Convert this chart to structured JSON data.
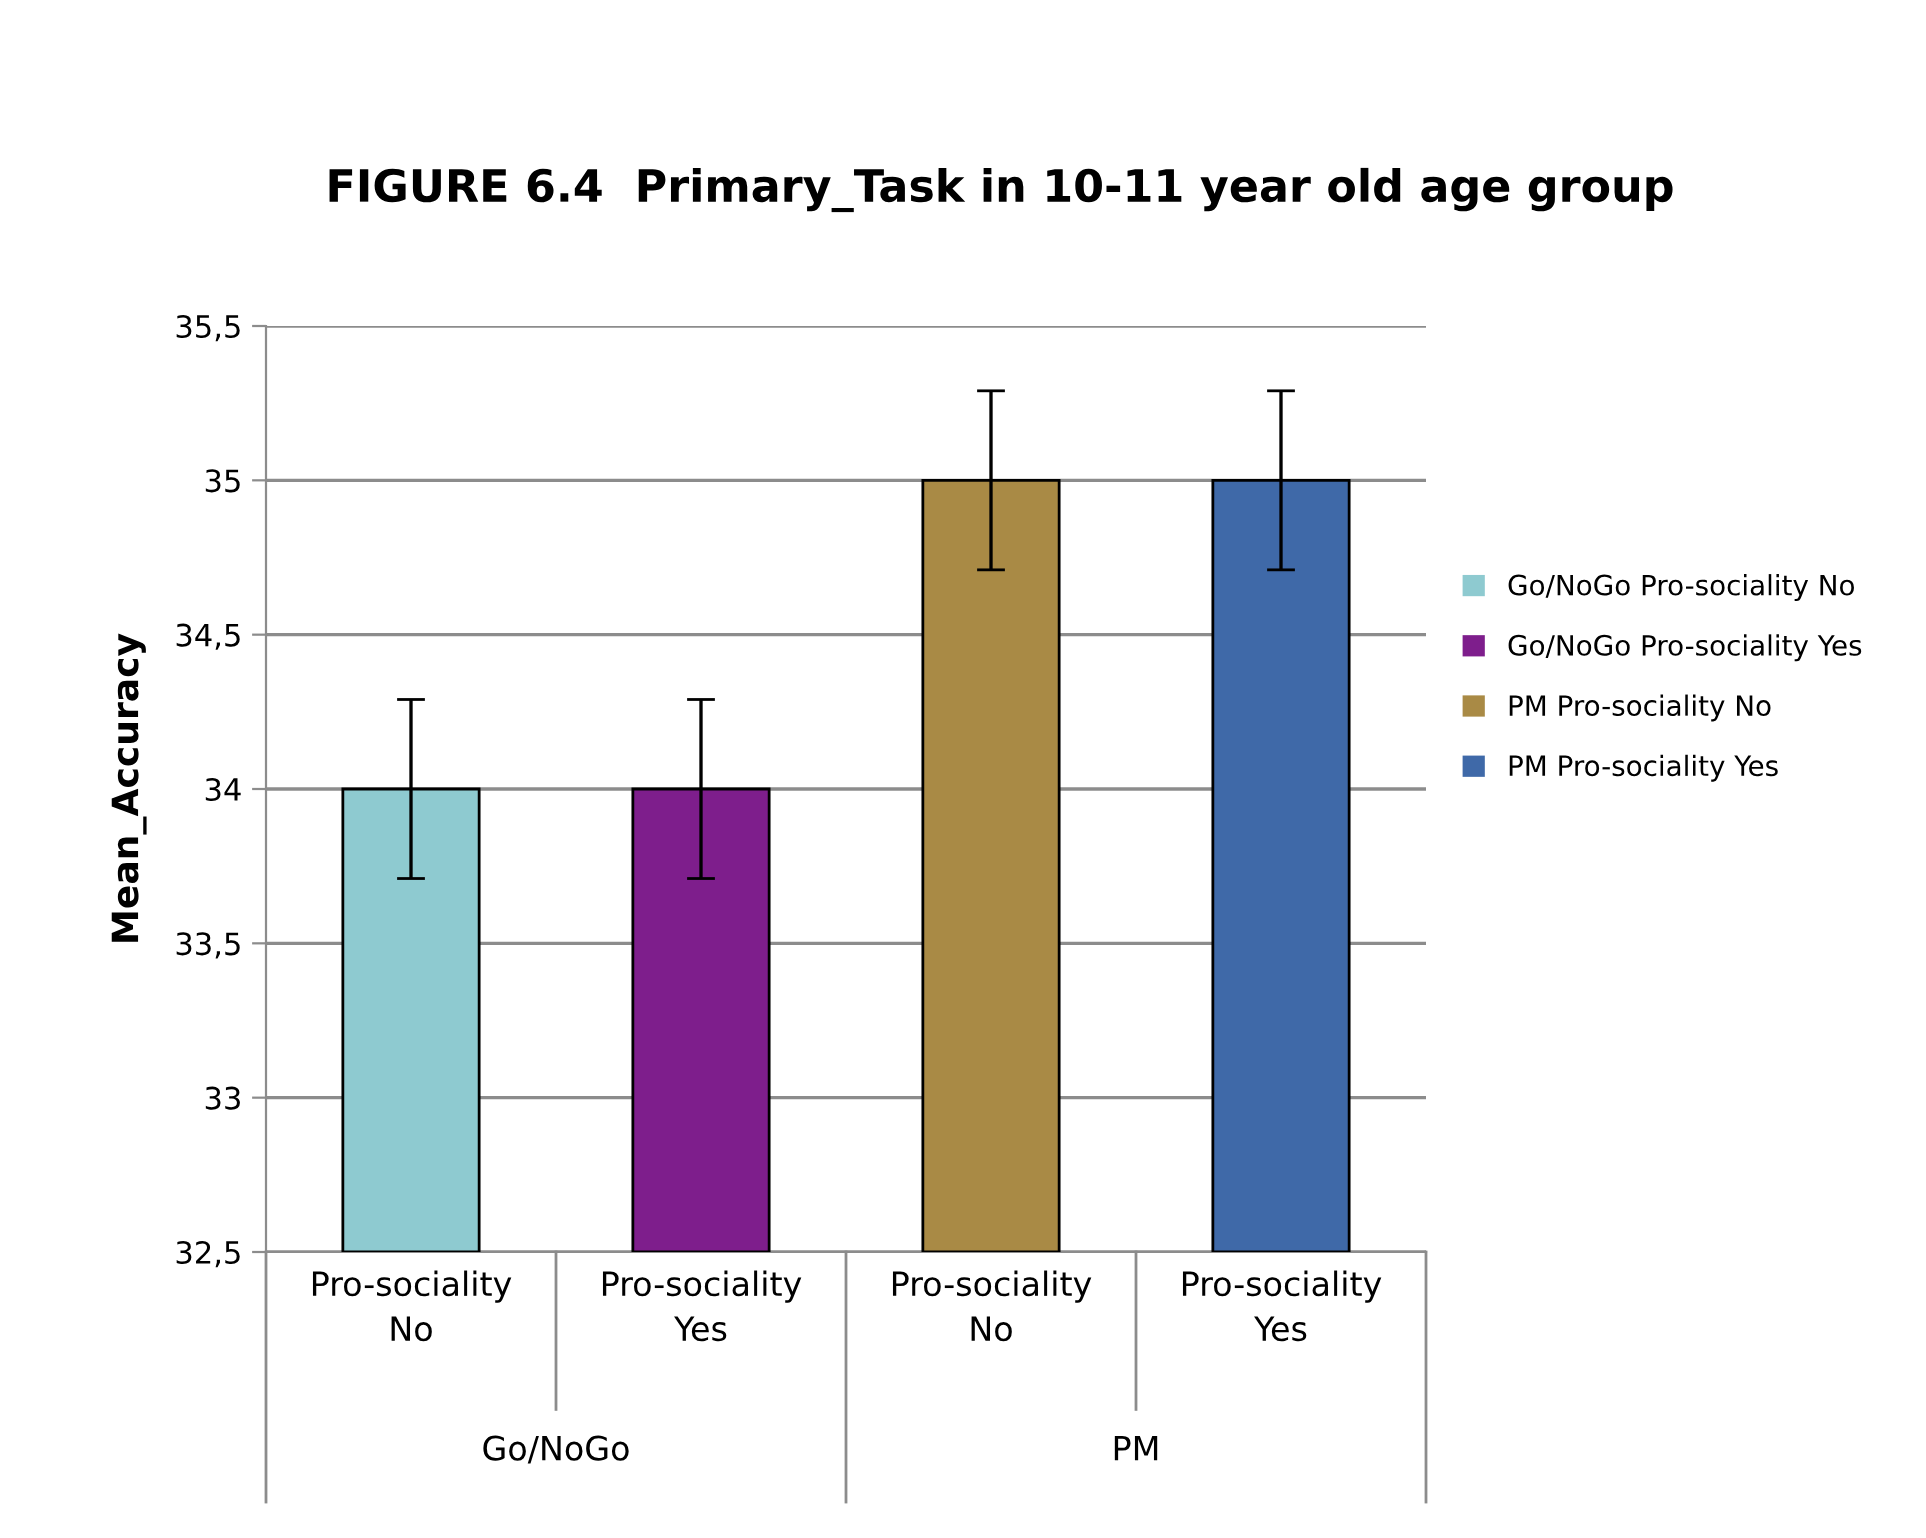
{
  "chart_data": {
    "type": "bar",
    "title": "FIGURE 6.4  Primary_Task in 10-11 year old age group",
    "ylabel": "Mean_Accuracy",
    "categories": [
      "Pro-sociality\nNo",
      "Pro-sociality\nYes",
      "Pro-sociality\nNo",
      "Pro-sociality\nYes"
    ],
    "annotations": [
      "Go/NoGo",
      "PM"
    ],
    "series": [
      {
        "name": "Go/NoGo Pro-sociality No",
        "color": "#8ecad0",
        "values": [
          34,
          null,
          null,
          null
        ],
        "errors": [
          0.29,
          null,
          null,
          null
        ]
      },
      {
        "name": "Go/NoGo Pro-sociality Yes",
        "color": "#7e1e8c",
        "values": [
          null,
          34,
          null,
          null
        ],
        "errors": [
          null,
          0.29,
          null,
          null
        ]
      },
      {
        "name": "PM Pro-sociality No",
        "color": "#a98a45",
        "values": [
          null,
          null,
          35,
          null
        ],
        "errors": [
          null,
          null,
          0.29,
          null
        ]
      },
      {
        "name": "PM Pro-sociality Yes",
        "color": "#3f69a8",
        "values": [
          null,
          null,
          null,
          35
        ],
        "errors": [
          null,
          null,
          null,
          0.29
        ]
      }
    ],
    "ylim": [
      32.5,
      35.5
    ],
    "yticks": [
      {
        "value": 32.5,
        "label": "32,5"
      },
      33,
      {
        "value": 33.5,
        "label": "33,5"
      },
      34,
      {
        "value": 34.5,
        "label": "34,5"
      },
      35,
      {
        "value": 35.5,
        "label": "35,5"
      }
    ],
    "grid": "y",
    "legend": "right"
  }
}
